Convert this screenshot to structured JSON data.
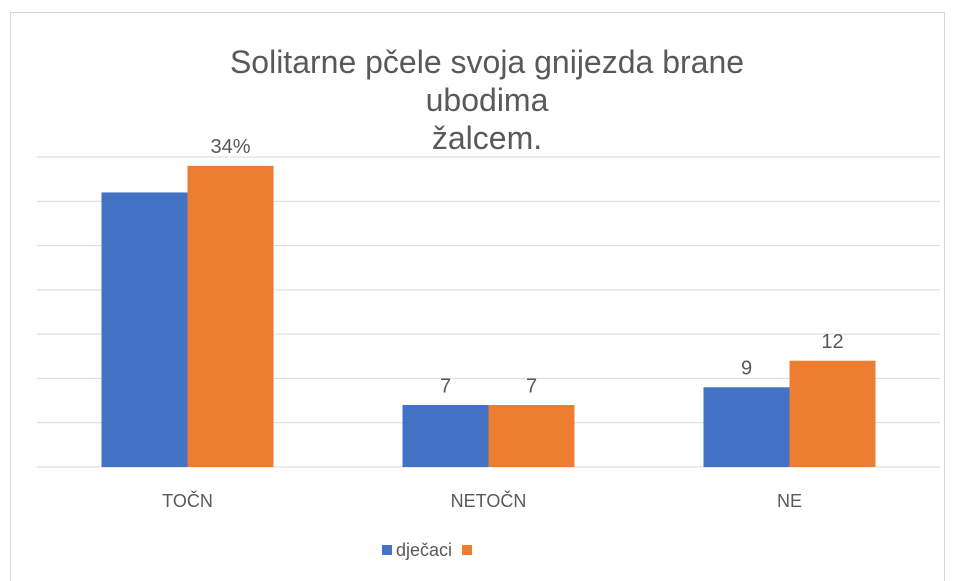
{
  "chart_data": {
    "type": "bar",
    "title": [
      "Solitarne pčele svoja gnijezda brane",
      "ubodima",
      "žalcem."
    ],
    "categories": [
      "TOČN",
      "NETOČN",
      "NE"
    ],
    "series": [
      {
        "name": "dječaci",
        "color": "#4472c4",
        "values": [
          31,
          7,
          9
        ],
        "value_labels": [
          null,
          "7",
          "9"
        ]
      },
      {
        "name": null,
        "color": "#ed7d31",
        "values": [
          34,
          7,
          12
        ],
        "value_labels": [
          "34%",
          "7",
          "12"
        ]
      }
    ],
    "ylim": [
      0,
      35
    ],
    "yticks": [
      0,
      5,
      10,
      15,
      20,
      25,
      30,
      35
    ],
    "grid": true,
    "legend": "bottom"
  }
}
